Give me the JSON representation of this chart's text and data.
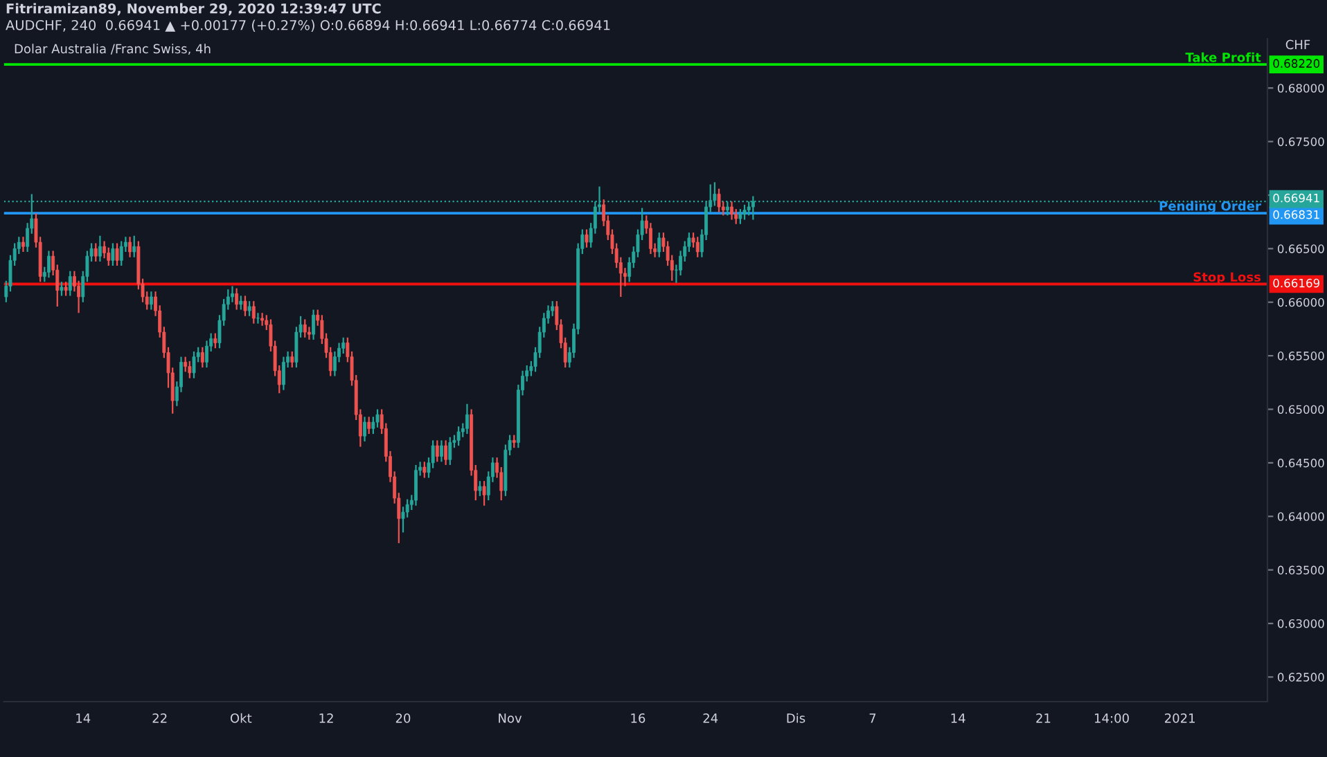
{
  "chart_data": {
    "type": "candlestick",
    "annotations": [
      "Fitriramizan89, November 29, 2020 12:39:47 UTC",
      "AUDCHF, 240  0.66941 ▲ +0.00177 (+0.27%) O:0.66894 H:0.66941 L:0.66774 C:0.66941",
      "Dolar Australia /Franc Swiss, 4h",
      "CHF",
      {
        "text": "0.68220",
        "y": 0.6822
      },
      {
        "text": "0.66941",
        "y": 0.66941
      },
      {
        "text": "0.66831",
        "y": 0.66831
      },
      {
        "text": "0.66169",
        "y": 0.66169
      }
    ],
    "categories": [
      null,
      null,
      null,
      null,
      null,
      null,
      null,
      null,
      null,
      null,
      null,
      null,
      null,
      null,
      null,
      null,
      null,
      null,
      "14",
      null,
      null,
      null,
      null,
      null,
      null,
      null,
      null,
      null,
      null,
      null,
      null,
      null,
      null,
      null,
      null,
      null,
      "22",
      null,
      null,
      null,
      null,
      null,
      null,
      null,
      null,
      null,
      null,
      null,
      null,
      null,
      null,
      null,
      null,
      null,
      null,
      "Okt",
      null,
      null,
      null,
      null,
      null,
      null,
      null,
      null,
      null,
      null,
      null,
      null,
      null,
      null,
      null,
      null,
      null,
      null,
      null,
      "12",
      null,
      null,
      null,
      null,
      null,
      null,
      null,
      null,
      null,
      null,
      null,
      null,
      null,
      null,
      null,
      null,
      null,
      "20",
      null,
      null,
      null,
      null,
      null,
      null,
      null,
      null,
      null,
      null,
      null,
      null,
      null,
      null,
      null,
      null,
      null,
      null,
      null,
      null,
      null,
      null,
      null,
      null,
      "Nov",
      null,
      null,
      null,
      null,
      null,
      null,
      null,
      null,
      null,
      null,
      null,
      null,
      null,
      null,
      null,
      null,
      null,
      null,
      null,
      null,
      null,
      null,
      null,
      null,
      null,
      null,
      null,
      null,
      null,
      "16",
      null,
      null,
      null,
      null,
      null,
      null,
      null,
      null,
      null,
      null,
      null,
      null,
      null,
      null,
      null,
      null,
      "24",
      null,
      null,
      null,
      null,
      null,
      null,
      null,
      null,
      null,
      null,
      null,
      null,
      null,
      null,
      null,
      null,
      null,
      null,
      null,
      "Dis",
      null,
      null,
      null,
      null,
      null,
      null,
      null,
      null,
      null,
      null,
      null,
      null,
      null,
      null,
      null,
      null,
      null,
      "7",
      null,
      null,
      null,
      null,
      null,
      null,
      null,
      null,
      null,
      null,
      null,
      null,
      null,
      null,
      null,
      null,
      null,
      null,
      null,
      "14",
      null,
      null,
      null,
      null,
      null,
      null,
      null,
      null,
      null,
      null,
      null,
      null,
      null,
      null,
      null,
      null,
      null,
      null,
      null,
      "21",
      null,
      null,
      null,
      null,
      null,
      null,
      null,
      null,
      null,
      null,
      null,
      null,
      null,
      null,
      null,
      "14:00",
      null,
      null,
      null,
      null,
      null,
      null,
      null,
      null,
      null,
      null,
      null,
      null,
      null,
      null,
      null,
      "2021",
      null,
      null,
      null,
      null,
      null,
      null,
      null,
      null,
      null,
      null,
      null,
      null,
      null,
      null,
      null,
      null,
      null,
      null,
      null,
      null
    ],
    "ohlc": [
      [
        0.6605,
        0.662,
        0.66,
        0.6615
      ],
      [
        0.6615,
        0.6644,
        0.661,
        0.6639
      ],
      [
        0.6639,
        0.6655,
        0.6634,
        0.665
      ],
      [
        0.665,
        0.6661,
        0.6645,
        0.6656
      ],
      [
        0.6656,
        0.6661,
        0.6647,
        0.6652
      ],
      [
        0.6652,
        0.6674,
        0.6647,
        0.6669
      ],
      [
        0.6669,
        0.6701,
        0.6664,
        0.6678
      ],
      [
        0.6678,
        0.6683,
        0.6651,
        0.6656
      ],
      [
        0.6656,
        0.6661,
        0.6619,
        0.6624
      ],
      [
        0.6624,
        0.6633,
        0.6619,
        0.6628
      ],
      [
        0.6628,
        0.6648,
        0.6623,
        0.6643
      ],
      [
        0.6643,
        0.6648,
        0.6625,
        0.663
      ],
      [
        0.663,
        0.6635,
        0.6596,
        0.6611
      ],
      [
        0.6611,
        0.6619,
        0.6606,
        0.6614
      ],
      [
        0.6614,
        0.6619,
        0.6606,
        0.6611
      ],
      [
        0.6611,
        0.6629,
        0.6606,
        0.6624
      ],
      [
        0.6624,
        0.6629,
        0.661,
        0.6615
      ],
      [
        0.6615,
        0.662,
        0.659,
        0.6605
      ],
      [
        0.6605,
        0.6629,
        0.66,
        0.6624
      ],
      [
        0.6624,
        0.6648,
        0.6619,
        0.6643
      ],
      [
        0.6643,
        0.6655,
        0.6638,
        0.665
      ],
      [
        0.665,
        0.6655,
        0.6638,
        0.6643
      ],
      [
        0.6643,
        0.6662,
        0.6638,
        0.6652
      ],
      [
        0.6652,
        0.6657,
        0.6641,
        0.6646
      ],
      [
        0.6646,
        0.6651,
        0.6634,
        0.6639
      ],
      [
        0.6639,
        0.6655,
        0.6634,
        0.665
      ],
      [
        0.665,
        0.6655,
        0.6634,
        0.6639
      ],
      [
        0.6639,
        0.6657,
        0.6634,
        0.6652
      ],
      [
        0.6652,
        0.6661,
        0.6647,
        0.6656
      ],
      [
        0.6656,
        0.6661,
        0.6642,
        0.6647
      ],
      [
        0.6647,
        0.6662,
        0.6642,
        0.6652
      ],
      [
        0.6652,
        0.6657,
        0.6612,
        0.6617
      ],
      [
        0.6617,
        0.6622,
        0.66,
        0.6605
      ],
      [
        0.6605,
        0.661,
        0.6593,
        0.6598
      ],
      [
        0.6598,
        0.661,
        0.6593,
        0.6605
      ],
      [
        0.6605,
        0.661,
        0.6587,
        0.6592
      ],
      [
        0.6592,
        0.6597,
        0.6567,
        0.6572
      ],
      [
        0.6572,
        0.6577,
        0.6548,
        0.6553
      ],
      [
        0.6553,
        0.6558,
        0.652,
        0.6534
      ],
      [
        0.6534,
        0.6539,
        0.6496,
        0.6508
      ],
      [
        0.6508,
        0.6526,
        0.6503,
        0.6521
      ],
      [
        0.6521,
        0.6549,
        0.6516,
        0.6544
      ],
      [
        0.6544,
        0.6549,
        0.6535,
        0.654
      ],
      [
        0.654,
        0.6545,
        0.6529,
        0.6534
      ],
      [
        0.6534,
        0.6554,
        0.6529,
        0.6549
      ],
      [
        0.6549,
        0.6558,
        0.6544,
        0.6553
      ],
      [
        0.6553,
        0.6558,
        0.6539,
        0.6544
      ],
      [
        0.6544,
        0.6564,
        0.6539,
        0.6559
      ],
      [
        0.6559,
        0.6571,
        0.6554,
        0.6566
      ],
      [
        0.6566,
        0.6571,
        0.6557,
        0.6562
      ],
      [
        0.6562,
        0.6588,
        0.6557,
        0.6583
      ],
      [
        0.6583,
        0.6603,
        0.6578,
        0.6598
      ],
      [
        0.6598,
        0.6612,
        0.6593,
        0.6605
      ],
      [
        0.6605,
        0.6615,
        0.66,
        0.6608
      ],
      [
        0.6608,
        0.6613,
        0.6593,
        0.6598
      ],
      [
        0.6598,
        0.6606,
        0.6593,
        0.6601
      ],
      [
        0.6601,
        0.6606,
        0.6587,
        0.6592
      ],
      [
        0.6592,
        0.6601,
        0.6587,
        0.6596
      ],
      [
        0.6596,
        0.6601,
        0.658,
        0.6585
      ],
      [
        0.6585,
        0.659,
        0.658,
        0.6585
      ],
      [
        0.6585,
        0.659,
        0.6578,
        0.6583
      ],
      [
        0.6583,
        0.6588,
        0.6574,
        0.6579
      ],
      [
        0.6579,
        0.6584,
        0.6554,
        0.6559
      ],
      [
        0.6559,
        0.6564,
        0.6531,
        0.6536
      ],
      [
        0.6536,
        0.6541,
        0.6515,
        0.6523
      ],
      [
        0.6523,
        0.6549,
        0.6518,
        0.6544
      ],
      [
        0.6544,
        0.6554,
        0.6539,
        0.6549
      ],
      [
        0.6549,
        0.6554,
        0.6539,
        0.6544
      ],
      [
        0.6544,
        0.6577,
        0.6539,
        0.6572
      ],
      [
        0.6572,
        0.6587,
        0.6567,
        0.6579
      ],
      [
        0.6579,
        0.6584,
        0.6567,
        0.6572
      ],
      [
        0.6572,
        0.6577,
        0.6565,
        0.657
      ],
      [
        0.657,
        0.6593,
        0.6565,
        0.6588
      ],
      [
        0.6588,
        0.6593,
        0.6578,
        0.6583
      ],
      [
        0.6583,
        0.6588,
        0.6561,
        0.6566
      ],
      [
        0.6566,
        0.6571,
        0.6548,
        0.6553
      ],
      [
        0.6553,
        0.6558,
        0.6531,
        0.6536
      ],
      [
        0.6536,
        0.6554,
        0.6531,
        0.6549
      ],
      [
        0.6549,
        0.6562,
        0.6544,
        0.6557
      ],
      [
        0.6557,
        0.6567,
        0.6552,
        0.6562
      ],
      [
        0.6562,
        0.6567,
        0.6544,
        0.6549
      ],
      [
        0.6549,
        0.6554,
        0.6522,
        0.6527
      ],
      [
        0.6527,
        0.6532,
        0.649,
        0.6495
      ],
      [
        0.6495,
        0.65,
        0.6465,
        0.6475
      ],
      [
        0.6475,
        0.6493,
        0.647,
        0.6488
      ],
      [
        0.6488,
        0.6493,
        0.6477,
        0.6482
      ],
      [
        0.6482,
        0.6493,
        0.6477,
        0.6488
      ],
      [
        0.6488,
        0.65,
        0.6483,
        0.6495
      ],
      [
        0.6495,
        0.65,
        0.6477,
        0.6482
      ],
      [
        0.6482,
        0.6487,
        0.6451,
        0.6456
      ],
      [
        0.6456,
        0.6461,
        0.6432,
        0.6437
      ],
      [
        0.6437,
        0.6442,
        0.6412,
        0.6417
      ],
      [
        0.6417,
        0.6422,
        0.6375,
        0.6398
      ],
      [
        0.6398,
        0.6409,
        0.6385,
        0.6404
      ],
      [
        0.6404,
        0.6416,
        0.6399,
        0.6411
      ],
      [
        0.6411,
        0.642,
        0.6406,
        0.6415
      ],
      [
        0.6415,
        0.6448,
        0.641,
        0.6443
      ],
      [
        0.6443,
        0.6451,
        0.6438,
        0.6446
      ],
      [
        0.6446,
        0.6451,
        0.6436,
        0.6441
      ],
      [
        0.6441,
        0.6455,
        0.6436,
        0.645
      ],
      [
        0.645,
        0.6471,
        0.6445,
        0.6466
      ],
      [
        0.6466,
        0.6471,
        0.6451,
        0.6456
      ],
      [
        0.6456,
        0.6471,
        0.6451,
        0.6466
      ],
      [
        0.6466,
        0.6471,
        0.6448,
        0.6453
      ],
      [
        0.6453,
        0.6474,
        0.6448,
        0.6469
      ],
      [
        0.6469,
        0.6476,
        0.6464,
        0.6471
      ],
      [
        0.6471,
        0.6484,
        0.6466,
        0.6479
      ],
      [
        0.6479,
        0.6487,
        0.6474,
        0.6482
      ],
      [
        0.6482,
        0.6505,
        0.6477,
        0.6495
      ],
      [
        0.6495,
        0.65,
        0.6438,
        0.6443
      ],
      [
        0.6443,
        0.6448,
        0.6415,
        0.6424
      ],
      [
        0.6424,
        0.6433,
        0.6419,
        0.6428
      ],
      [
        0.6428,
        0.6433,
        0.641,
        0.642
      ],
      [
        0.642,
        0.6442,
        0.6415,
        0.6437
      ],
      [
        0.6437,
        0.6455,
        0.6432,
        0.645
      ],
      [
        0.645,
        0.6455,
        0.6436,
        0.6441
      ],
      [
        0.6441,
        0.6446,
        0.6415,
        0.6424
      ],
      [
        0.6424,
        0.6467,
        0.6419,
        0.6462
      ],
      [
        0.6462,
        0.6476,
        0.6457,
        0.6471
      ],
      [
        0.6471,
        0.6476,
        0.6464,
        0.6469
      ],
      [
        0.6469,
        0.6523,
        0.6464,
        0.6518
      ],
      [
        0.6518,
        0.6536,
        0.6513,
        0.6531
      ],
      [
        0.6531,
        0.6541,
        0.6526,
        0.6536
      ],
      [
        0.6536,
        0.6545,
        0.6531,
        0.654
      ],
      [
        0.654,
        0.6558,
        0.6535,
        0.6553
      ],
      [
        0.6553,
        0.6577,
        0.6548,
        0.6572
      ],
      [
        0.6572,
        0.659,
        0.6567,
        0.6585
      ],
      [
        0.6585,
        0.6597,
        0.658,
        0.6592
      ],
      [
        0.6592,
        0.6601,
        0.6587,
        0.6596
      ],
      [
        0.6596,
        0.6601,
        0.6574,
        0.6579
      ],
      [
        0.6579,
        0.6584,
        0.6557,
        0.6562
      ],
      [
        0.6562,
        0.6567,
        0.6539,
        0.6544
      ],
      [
        0.6544,
        0.6558,
        0.6539,
        0.6553
      ],
      [
        0.6553,
        0.658,
        0.6548,
        0.6575
      ],
      [
        0.6575,
        0.6655,
        0.657,
        0.665
      ],
      [
        0.665,
        0.6668,
        0.6645,
        0.6663
      ],
      [
        0.6663,
        0.6668,
        0.6651,
        0.6656
      ],
      [
        0.6656,
        0.6674,
        0.6651,
        0.6669
      ],
      [
        0.6669,
        0.6694,
        0.6664,
        0.6689
      ],
      [
        0.6689,
        0.6708,
        0.6684,
        0.6691
      ],
      [
        0.6691,
        0.6696,
        0.6671,
        0.6676
      ],
      [
        0.6676,
        0.6681,
        0.6658,
        0.6663
      ],
      [
        0.6663,
        0.6668,
        0.6645,
        0.665
      ],
      [
        0.665,
        0.6655,
        0.6632,
        0.6637
      ],
      [
        0.6637,
        0.6642,
        0.6605,
        0.6627
      ],
      [
        0.6627,
        0.6632,
        0.6615,
        0.6624
      ],
      [
        0.6624,
        0.6642,
        0.6619,
        0.6637
      ],
      [
        0.6637,
        0.6652,
        0.6632,
        0.6647
      ],
      [
        0.6647,
        0.6668,
        0.6642,
        0.6663
      ],
      [
        0.6663,
        0.6688,
        0.6658,
        0.6676
      ],
      [
        0.6676,
        0.6681,
        0.6664,
        0.6669
      ],
      [
        0.6669,
        0.6674,
        0.6645,
        0.665
      ],
      [
        0.665,
        0.6655,
        0.6642,
        0.6647
      ],
      [
        0.6647,
        0.6665,
        0.6642,
        0.666
      ],
      [
        0.666,
        0.6665,
        0.6647,
        0.6652
      ],
      [
        0.6652,
        0.6657,
        0.6634,
        0.6639
      ],
      [
        0.6639,
        0.6644,
        0.662,
        0.663
      ],
      [
        0.663,
        0.6635,
        0.6618,
        0.663
      ],
      [
        0.663,
        0.6648,
        0.6625,
        0.6643
      ],
      [
        0.6643,
        0.6657,
        0.6638,
        0.6652
      ],
      [
        0.6652,
        0.6665,
        0.6647,
        0.666
      ],
      [
        0.666,
        0.6665,
        0.6651,
        0.6656
      ],
      [
        0.6656,
        0.6661,
        0.6642,
        0.6647
      ],
      [
        0.6647,
        0.6668,
        0.6642,
        0.6663
      ],
      [
        0.6663,
        0.6694,
        0.6658,
        0.6689
      ],
      [
        0.6689,
        0.671,
        0.6684,
        0.6695
      ],
      [
        0.6695,
        0.6712,
        0.669,
        0.6701
      ],
      [
        0.6701,
        0.6706,
        0.6684,
        0.6689
      ],
      [
        0.6689,
        0.6694,
        0.6681,
        0.6686
      ],
      [
        0.6686,
        0.6694,
        0.6681,
        0.6689
      ],
      [
        0.6689,
        0.6694,
        0.6677,
        0.6682
      ],
      [
        0.6682,
        0.6687,
        0.6673,
        0.6678
      ],
      [
        0.6678,
        0.6687,
        0.6673,
        0.6682
      ],
      [
        0.6682,
        0.6691,
        0.6677,
        0.6686
      ],
      [
        0.6686,
        0.6694,
        0.6681,
        0.6689
      ],
      [
        0.6689,
        0.6699,
        0.6677,
        0.6694
      ],
      null,
      null,
      null,
      null,
      null,
      null,
      null,
      null,
      null,
      null,
      null,
      null,
      null,
      null,
      null,
      null,
      null,
      null,
      null,
      null,
      null,
      null,
      null,
      null,
      null,
      null,
      null,
      null,
      null,
      null,
      null,
      null,
      null,
      null,
      null,
      null,
      null,
      null,
      null,
      null,
      null,
      null,
      null,
      null,
      null,
      null,
      null,
      null,
      null,
      null,
      null,
      null,
      null,
      null,
      null,
      null,
      null,
      null,
      null,
      null,
      null,
      null,
      null,
      null,
      null,
      null,
      null,
      null,
      null,
      null,
      null,
      null,
      null,
      null,
      null,
      null,
      null,
      null,
      null,
      null,
      null,
      null,
      null,
      null,
      null,
      null,
      null,
      null,
      null,
      null,
      null,
      null,
      null,
      null,
      null,
      null,
      null,
      null,
      null,
      null,
      null,
      null,
      null,
      null,
      null,
      null,
      null,
      null,
      null,
      null,
      null,
      null,
      null,
      null,
      null,
      null,
      null,
      null,
      null,
      null
    ],
    "ylim": [
      0.6227,
      0.6846
    ],
    "yticks": [
      {
        "value": 0.625,
        "label": "0.62500"
      },
      {
        "value": 0.63,
        "label": "0.63000"
      },
      {
        "value": 0.635,
        "label": "0.63500"
      },
      {
        "value": 0.64,
        "label": "0.64000"
      },
      {
        "value": 0.645,
        "label": "0.64500"
      },
      {
        "value": 0.65,
        "label": "0.65000"
      },
      {
        "value": 0.655,
        "label": "0.65500"
      },
      {
        "value": 0.66,
        "label": "0.66000"
      },
      {
        "value": 0.665,
        "label": "0.66500"
      },
      {
        "value": 0.67,
        "label": null
      },
      {
        "value": 0.675,
        "label": "0.67500"
      },
      {
        "value": 0.68,
        "label": "0.68000"
      }
    ],
    "ref_lines": [
      {
        "axis": "y",
        "value": 0.6822,
        "label": "Take Profit",
        "color": "#00e600",
        "line_style": "solid"
      },
      {
        "axis": "y",
        "value": 0.66831,
        "label": "Pending Order",
        "color": "#2196f3",
        "line_style": "solid"
      },
      {
        "axis": "y",
        "value": 0.66169,
        "label": "Stop Loss",
        "color": "#f01010",
        "line_style": "solid"
      },
      {
        "axis": "y",
        "value": 0.66941,
        "label": null,
        "color": "#26a69a",
        "line_style": "dotted"
      }
    ],
    "grid": false
  }
}
